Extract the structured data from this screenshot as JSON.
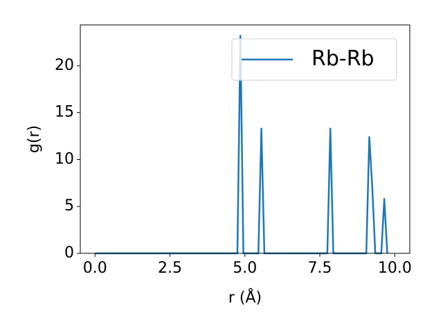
{
  "chart_data": {
    "type": "line",
    "x_label": "r (Å)",
    "y_label": "g(r)",
    "series": [
      {
        "name": "Rb-Rb",
        "color": "#1f77b4",
        "x": [
          0,
          4.75,
          4.85,
          4.95,
          5.45,
          5.55,
          5.65,
          7.75,
          7.85,
          7.95,
          9.05,
          9.15,
          9.25,
          9.35,
          9.55,
          9.65,
          9.75
        ],
        "values": [
          0,
          0,
          23.2,
          0,
          0,
          13.3,
          0,
          0,
          13.3,
          0,
          0,
          12.4,
          7.0,
          0,
          0,
          5.8,
          0
        ]
      }
    ],
    "xlim": [
      -0.49,
      10.5
    ],
    "ylim": [
      0,
      24.35
    ],
    "xticks": [
      {
        "value": 0,
        "label": "0.0"
      },
      {
        "value": 2.5,
        "label": "2.5"
      },
      {
        "value": 5,
        "label": "5.0"
      },
      {
        "value": 7.5,
        "label": "7.5"
      },
      {
        "value": 10,
        "label": "10.0"
      }
    ],
    "yticks": [
      0,
      5,
      10,
      15,
      20
    ],
    "legend": "upper right"
  }
}
